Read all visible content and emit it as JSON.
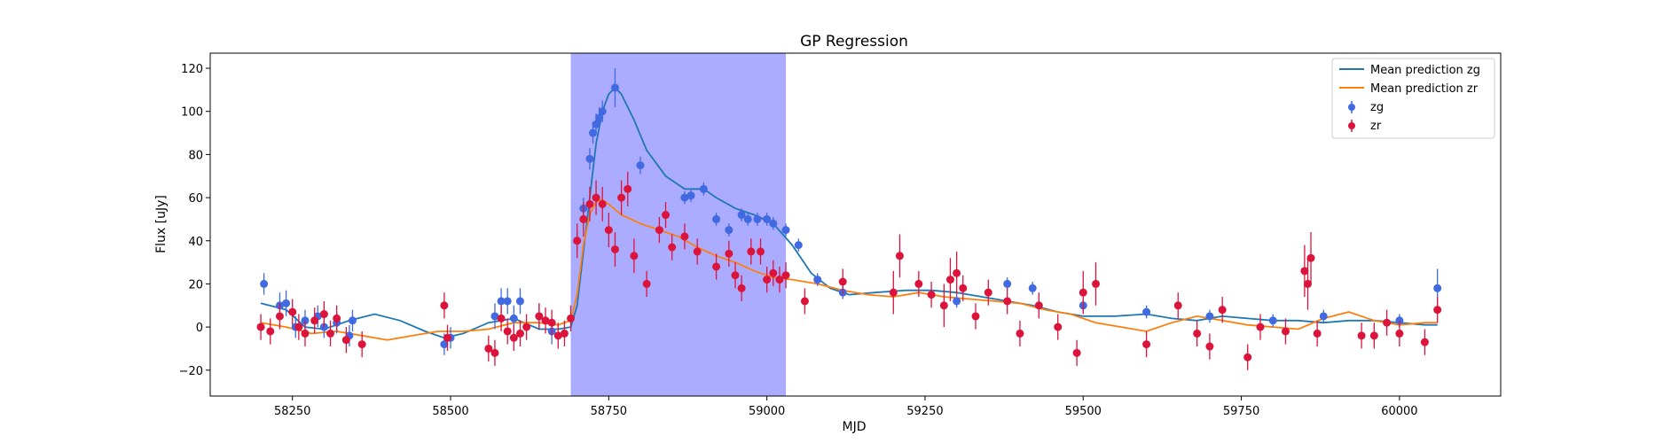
{
  "chart_data": {
    "type": "scatter",
    "title": "GP Regression",
    "xlabel": "MJD",
    "ylabel": "Flux [uJy]",
    "xlim": [
      58120,
      60160
    ],
    "ylim": [
      -32,
      127
    ],
    "x_ticks": [
      58250,
      58500,
      58750,
      59000,
      59250,
      59500,
      59750,
      60000
    ],
    "y_ticks": [
      -20,
      0,
      20,
      40,
      60,
      80,
      100,
      120
    ],
    "grid": false,
    "legend_position": "top-right",
    "shaded_region": {
      "x_start": 58690,
      "x_end": 59030,
      "color": "#a6a6ff"
    },
    "series": [
      {
        "name": "Mean prediction zg",
        "kind": "line",
        "color": "#1f77b4",
        "x": [
          58200,
          58240,
          58270,
          58300,
          58340,
          58380,
          58420,
          58460,
          58490,
          58520,
          58560,
          58600,
          58640,
          58670,
          58690,
          58700,
          58710,
          58720,
          58730,
          58740,
          58750,
          58760,
          58770,
          58790,
          58810,
          58840,
          58870,
          58900,
          58920,
          58950,
          58980,
          59010,
          59040,
          59070,
          59100,
          59130,
          59170,
          59220,
          59260,
          59300,
          59340,
          59380,
          59420,
          59460,
          59500,
          59550,
          59600,
          59640,
          59680,
          59720,
          59760,
          59800,
          59840,
          59880,
          59920,
          59960,
          60000,
          60040,
          60060
        ],
        "y": [
          11,
          8,
          0,
          -1,
          3,
          6,
          3,
          -2,
          -5,
          -3,
          2,
          4,
          -1,
          -1,
          0,
          10,
          35,
          60,
          85,
          100,
          108,
          111,
          108,
          96,
          82,
          70,
          64,
          64,
          60,
          55,
          52,
          48,
          38,
          25,
          18,
          15,
          16,
          17,
          17,
          16,
          14,
          12,
          10,
          7,
          5,
          5,
          6,
          4,
          3,
          5,
          4,
          3,
          3,
          2,
          3,
          3,
          2,
          1,
          1
        ]
      },
      {
        "name": "Mean prediction zr",
        "kind": "line",
        "color": "#ff7f0e",
        "x": [
          58200,
          58240,
          58280,
          58320,
          58360,
          58400,
          58440,
          58480,
          58520,
          58560,
          58600,
          58640,
          58670,
          58690,
          58700,
          58710,
          58720,
          58730,
          58740,
          58750,
          58770,
          58800,
          58830,
          58860,
          58890,
          58920,
          58950,
          58980,
          59010,
          59040,
          59080,
          59120,
          59160,
          59200,
          59240,
          59280,
          59320,
          59360,
          59400,
          59440,
          59480,
          59520,
          59560,
          59600,
          59640,
          59680,
          59720,
          59760,
          59800,
          59840,
          59880,
          59920,
          59960,
          60000,
          60040,
          60060
        ],
        "y": [
          2,
          0,
          -3,
          -2,
          -4,
          -6,
          -4,
          -2,
          -2,
          -1,
          2,
          2,
          1,
          3,
          15,
          38,
          52,
          58,
          59,
          57,
          52,
          48,
          45,
          42,
          37,
          33,
          30,
          26,
          23,
          22,
          20,
          17,
          15,
          14,
          16,
          14,
          13,
          12,
          11,
          8,
          6,
          2,
          0,
          -2,
          2,
          5,
          3,
          1,
          0,
          -1,
          4,
          7,
          3,
          1,
          2,
          2
        ]
      },
      {
        "name": "zg",
        "kind": "points",
        "color": "#4169e1",
        "x": [
          58205,
          58230,
          58240,
          58255,
          58270,
          58290,
          58300,
          58320,
          58340,
          58345,
          58490,
          58500,
          58570,
          58580,
          58590,
          58600,
          58610,
          58640,
          58660,
          58700,
          58710,
          58720,
          58725,
          58730,
          58735,
          58740,
          58760,
          58800,
          58870,
          58880,
          58900,
          58920,
          58940,
          58960,
          58970,
          58985,
          59000,
          59010,
          59030,
          59050,
          59080,
          59120,
          59300,
          59380,
          59420,
          59500,
          59600,
          59700,
          59800,
          59880,
          60000,
          60060
        ],
        "y": [
          20,
          10,
          11,
          0,
          3,
          5,
          0,
          2,
          -4,
          3,
          -8,
          -5,
          5,
          12,
          12,
          4,
          12,
          5,
          -2,
          40,
          55,
          78,
          90,
          94,
          97,
          100,
          111,
          75,
          60,
          61,
          64,
          50,
          45,
          52,
          50,
          50,
          50,
          48,
          45,
          38,
          22,
          16,
          12,
          20,
          18,
          10,
          7,
          5,
          3,
          5,
          3,
          18
        ],
        "err": [
          5,
          6,
          6,
          5,
          5,
          5,
          5,
          5,
          5,
          5,
          5,
          5,
          6,
          6,
          6,
          6,
          6,
          6,
          6,
          5,
          5,
          5,
          5,
          5,
          5,
          5,
          9,
          4,
          3,
          3,
          3,
          3,
          3,
          3,
          3,
          3,
          3,
          3,
          3,
          3,
          3,
          3,
          3,
          3,
          3,
          3,
          3,
          3,
          3,
          3,
          3,
          9
        ]
      },
      {
        "name": "zr",
        "kind": "points",
        "color": "#dc143c",
        "x": [
          58200,
          58215,
          58230,
          58250,
          58260,
          58270,
          58285,
          58300,
          58310,
          58320,
          58335,
          58360,
          58490,
          58495,
          58560,
          58570,
          58580,
          58590,
          58600,
          58610,
          58620,
          58640,
          58650,
          58660,
          58670,
          58680,
          58690,
          58700,
          58710,
          58720,
          58730,
          58740,
          58750,
          58760,
          58770,
          58780,
          58790,
          58810,
          58830,
          58840,
          58850,
          58870,
          58890,
          58920,
          58940,
          58950,
          58960,
          58975,
          58990,
          59000,
          59010,
          59020,
          59030,
          59060,
          59120,
          59200,
          59210,
          59240,
          59260,
          59280,
          59290,
          59300,
          59310,
          59330,
          59350,
          59380,
          59400,
          59430,
          59460,
          59490,
          59500,
          59520,
          59600,
          59650,
          59680,
          59700,
          59720,
          59760,
          59780,
          59820,
          59850,
          59855,
          59860,
          59870,
          59940,
          59960,
          59980,
          60000,
          60040,
          60060
        ],
        "y": [
          0,
          -2,
          5,
          7,
          0,
          -3,
          3,
          6,
          -3,
          4,
          -6,
          -8,
          10,
          -5,
          -10,
          -12,
          4,
          -2,
          -5,
          -3,
          0,
          5,
          3,
          2,
          -4,
          -3,
          4,
          40,
          50,
          57,
          60,
          57,
          45,
          36,
          60,
          64,
          33,
          20,
          45,
          52,
          37,
          42,
          35,
          28,
          34,
          24,
          18,
          35,
          35,
          22,
          25,
          22,
          24,
          12,
          21,
          16,
          33,
          20,
          15,
          10,
          22,
          25,
          18,
          5,
          16,
          12,
          -3,
          10,
          0,
          -12,
          16,
          20,
          -8,
          10,
          -3,
          -9,
          8,
          -14,
          0,
          -2,
          26,
          20,
          32,
          -3,
          -4,
          -4,
          2,
          -3,
          -7,
          8
        ],
        "err": [
          6,
          6,
          6,
          6,
          6,
          6,
          6,
          6,
          6,
          6,
          6,
          6,
          6,
          6,
          6,
          6,
          6,
          6,
          6,
          6,
          6,
          6,
          6,
          6,
          6,
          6,
          6,
          8,
          8,
          8,
          8,
          8,
          8,
          8,
          8,
          8,
          8,
          6,
          6,
          6,
          6,
          6,
          6,
          6,
          6,
          6,
          6,
          6,
          6,
          6,
          6,
          6,
          6,
          6,
          6,
          10,
          10,
          6,
          6,
          10,
          10,
          10,
          6,
          6,
          6,
          6,
          6,
          6,
          6,
          6,
          10,
          10,
          6,
          6,
          6,
          6,
          6,
          6,
          6,
          6,
          12,
          12,
          12,
          6,
          6,
          6,
          6,
          6,
          6,
          6
        ]
      }
    ]
  }
}
